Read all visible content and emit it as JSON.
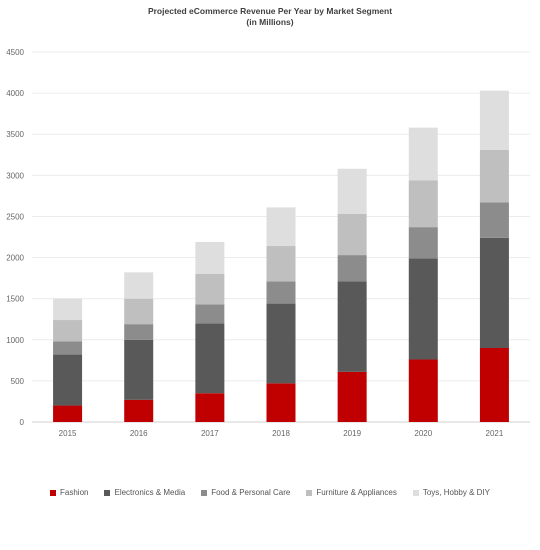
{
  "chart_data": {
    "type": "bar",
    "stacked": true,
    "title": "Projected eCommerce Revenue Per Year by Market Segment",
    "subtitle": "(in Millions)",
    "xlabel": "",
    "ylabel": "",
    "categories": [
      "2015",
      "2016",
      "2017",
      "2018",
      "2019",
      "2020",
      "2021"
    ],
    "ylim": [
      0,
      4500
    ],
    "yticks": [
      0,
      500,
      1000,
      1500,
      2000,
      2500,
      3000,
      3500,
      4000,
      4500
    ],
    "grid": true,
    "legend_position": "bottom",
    "series": [
      {
        "name": "Fashion",
        "color": "#c00000",
        "values": [
          200,
          270,
          350,
          470,
          610,
          760,
          900
        ]
      },
      {
        "name": "Electronics & Media",
        "color": "#595959",
        "values": [
          620,
          730,
          850,
          970,
          1100,
          1230,
          1340
        ]
      },
      {
        "name": "Food & Personal Care",
        "color": "#8c8c8c",
        "values": [
          160,
          190,
          230,
          270,
          320,
          380,
          430
        ]
      },
      {
        "name": "Furniture & Appliances",
        "color": "#bfbfbf",
        "values": [
          260,
          310,
          370,
          430,
          500,
          570,
          640
        ]
      },
      {
        "name": "Toys, Hobby & DIY",
        "color": "#dedede",
        "values": [
          260,
          320,
          390,
          470,
          550,
          640,
          720
        ]
      }
    ]
  }
}
